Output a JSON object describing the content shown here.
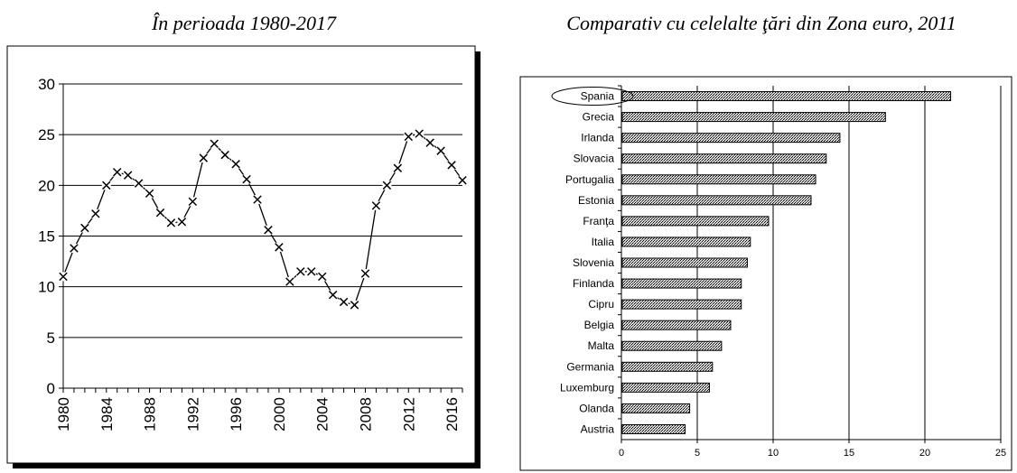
{
  "chart_data": [
    {
      "type": "line",
      "title": "În perioada 1980-2017",
      "xlim": [
        1980,
        2017
      ],
      "ylim": [
        0,
        30
      ],
      "y_ticks": [
        "0",
        "5",
        "10",
        "15",
        "20",
        "25",
        "30"
      ],
      "x_ticks": [
        "1980",
        "1984",
        "1988",
        "1992",
        "1996",
        "2000",
        "2004",
        "2008",
        "2012",
        "2016"
      ],
      "grid": "horizontal",
      "marker": "x",
      "x": [
        1980,
        1981,
        1982,
        1983,
        1984,
        1985,
        1986,
        1987,
        1988,
        1989,
        1990,
        1991,
        1992,
        1993,
        1994,
        1995,
        1996,
        1997,
        1998,
        1999,
        2000,
        2001,
        2002,
        2003,
        2004,
        2005,
        2006,
        2007,
        2008,
        2009,
        2010,
        2011,
        2012,
        2013,
        2014,
        2015,
        2016,
        2017
      ],
      "y": [
        11.0,
        13.8,
        15.8,
        17.2,
        20.0,
        21.3,
        21.0,
        20.2,
        19.2,
        17.3,
        16.3,
        16.4,
        18.4,
        22.7,
        24.1,
        23.0,
        22.1,
        20.6,
        18.6,
        15.6,
        13.9,
        10.5,
        11.5,
        11.5,
        11.0,
        9.2,
        8.5,
        8.2,
        11.3,
        18.0,
        20.0,
        21.7,
        24.8,
        25.1,
        24.2,
        23.4,
        22.0,
        20.5
      ]
    },
    {
      "type": "bar",
      "orientation": "horizontal",
      "title": "Comparativ cu celelalte ţări din Zona euro, 2011",
      "categories": [
        "Spania",
        "Grecia",
        "Irlanda",
        "Slovacia",
        "Portugalia",
        "Estonia",
        "Franţa",
        "Italia",
        "Slovenia",
        "Finlanda",
        "Cipru",
        "Belgia",
        "Malta",
        "Germania",
        "Luxemburg",
        "Olanda",
        "Austria"
      ],
      "values": [
        21.7,
        17.4,
        14.4,
        13.5,
        12.8,
        12.5,
        9.7,
        8.5,
        8.3,
        7.9,
        7.9,
        7.2,
        6.6,
        6.0,
        5.8,
        4.5,
        4.2
      ],
      "xlim": [
        0,
        25
      ],
      "x_ticks": [
        "0",
        "5",
        "10",
        "15",
        "20",
        "25"
      ],
      "grid": "vertical",
      "highlighted": "Spania"
    }
  ]
}
